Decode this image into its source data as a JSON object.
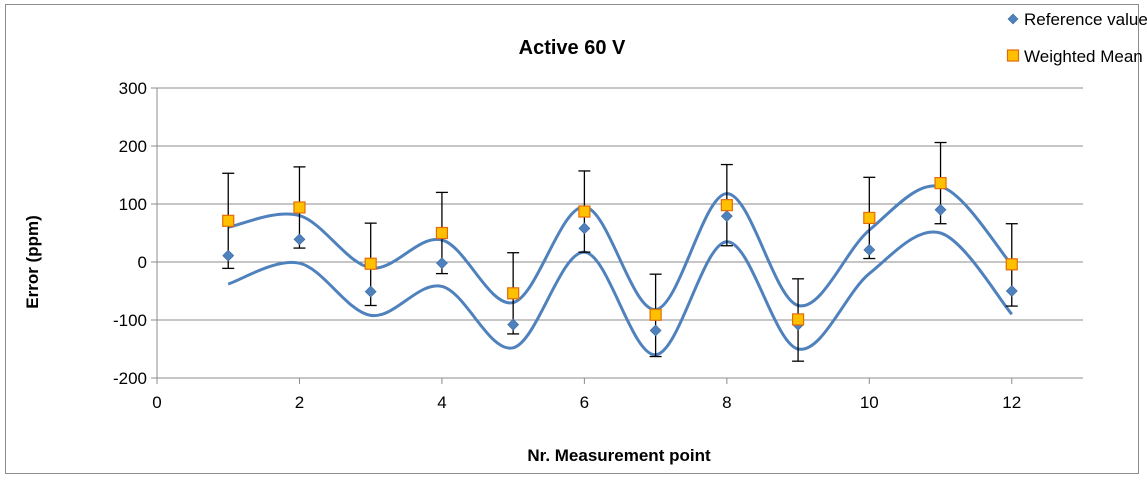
{
  "chart_data": {
    "type": "scatter",
    "title": "Active 60 V",
    "xlabel": "Nr.  Measurement point",
    "ylabel": "Error (ppm)",
    "xlim": [
      0,
      13
    ],
    "ylim": [
      -200,
      300
    ],
    "x_ticks": [
      0,
      2,
      4,
      6,
      8,
      10,
      12
    ],
    "y_ticks": [
      -200,
      -100,
      0,
      100,
      200,
      300
    ],
    "grid": "horizontal",
    "legend_position": "top-right",
    "x": [
      1,
      2,
      3,
      4,
      5,
      6,
      7,
      8,
      9,
      10,
      11,
      12
    ],
    "series": [
      {
        "name": "Reference value (PTB)",
        "marker": "diamond",
        "color": "#4f81bd",
        "values": [
          11,
          39,
          -51,
          -2,
          -108,
          58,
          -118,
          79,
          -108,
          21,
          90,
          -50
        ]
      },
      {
        "name": "Weighted Mean EIM",
        "marker": "square",
        "color": "#ffc000",
        "edge_color": "#e36c09",
        "values": [
          71,
          94,
          -3,
          50,
          -54,
          87,
          -91,
          98,
          -99,
          76,
          136,
          -4
        ],
        "error_minus": [
          82,
          70,
          72,
          70,
          70,
          70,
          72,
          70,
          72,
          70,
          70,
          72
        ],
        "error_plus": [
          82,
          70,
          70,
          70,
          70,
          70,
          70,
          70,
          70,
          70,
          70,
          70
        ]
      }
    ],
    "curves": [
      {
        "color": "#4f81bd",
        "values": [
          60,
          80,
          -10,
          38,
          -70,
          95,
          -82,
          118,
          -75,
          55,
          130,
          -5
        ]
      },
      {
        "color": "#4f81bd",
        "values": [
          -38,
          -2,
          -92,
          -42,
          -148,
          17,
          -160,
          35,
          -150,
          -20,
          50,
          -90
        ]
      }
    ]
  }
}
